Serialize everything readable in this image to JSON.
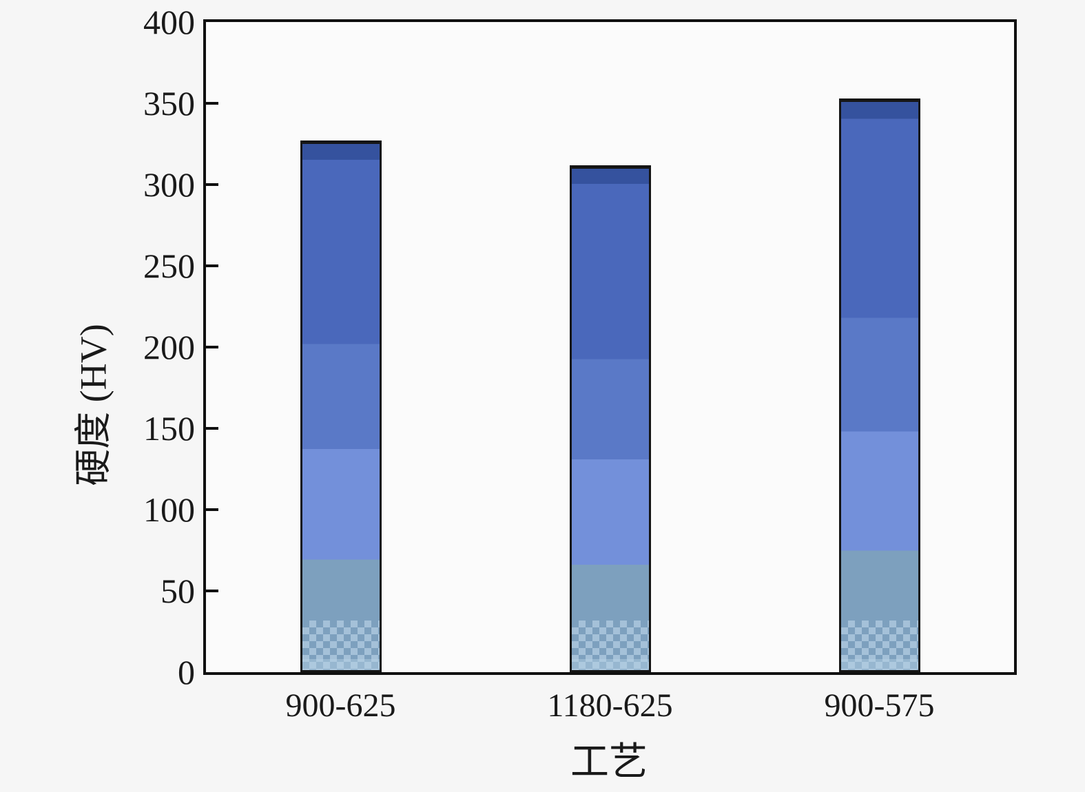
{
  "figure": {
    "background_color": "#f6f6f6",
    "plot_background_color": "#fbfbfb",
    "frame_color": "#101010"
  },
  "chart_data": {
    "type": "bar",
    "title": "",
    "xlabel": "工艺",
    "ylabel": "硬度 (HV)",
    "categories": [
      "900-625",
      "1180-625",
      "900-575"
    ],
    "values": [
      327,
      312,
      353
    ],
    "ylim": [
      0,
      400
    ],
    "y_ticks": [
      0,
      50,
      100,
      150,
      200,
      250,
      300,
      350,
      400
    ],
    "grid": "off",
    "legend": "none",
    "bar_style": {
      "outline_color": "#151515",
      "gradient_stops": [
        {
          "color": "#35529e",
          "to_pct": 3
        },
        {
          "color": "#4a68bb",
          "to_pct": 38
        },
        {
          "color": "#5a79c7",
          "to_pct": 58
        },
        {
          "color": "#7390da",
          "to_pct": 79
        },
        {
          "color": "#7da0be",
          "to_pct": 100
        }
      ],
      "speckle_color": "#9dbbd3"
    }
  }
}
